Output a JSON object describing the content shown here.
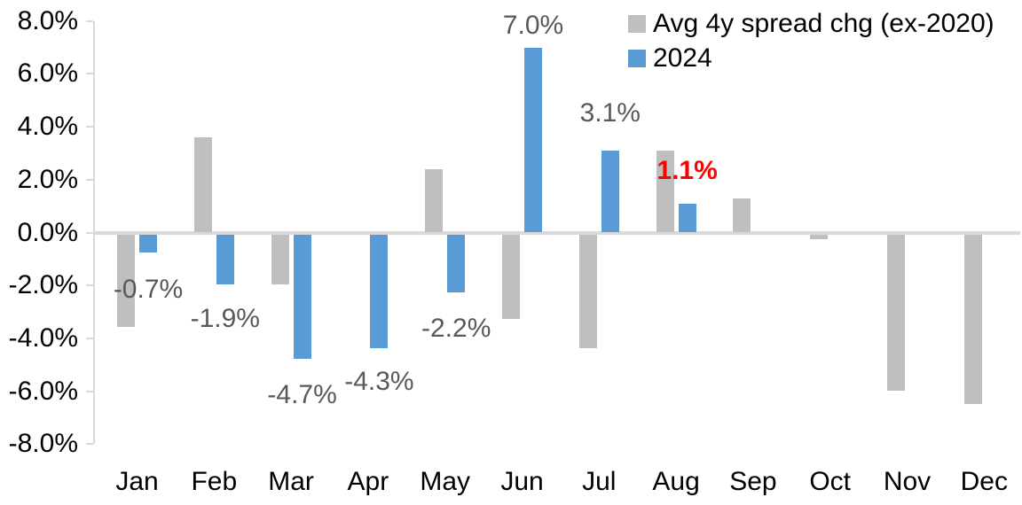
{
  "chart_data": {
    "type": "bar",
    "title": "",
    "xlabel": "",
    "ylabel": "",
    "categories": [
      "Jan",
      "Feb",
      "Mar",
      "Apr",
      "May",
      "Jun",
      "Jul",
      "Aug",
      "Sep",
      "Oct",
      "Nov",
      "Dec"
    ],
    "series": [
      {
        "name": "Avg 4y spread chg (ex-2020)",
        "color": "#BFBFBF",
        "values": [
          -3.5,
          3.6,
          -1.9,
          0.0,
          2.4,
          -3.2,
          -4.3,
          3.1,
          1.3,
          -0.2,
          -5.9,
          -6.4
        ]
      },
      {
        "name": "2024",
        "color": "#5B9BD5",
        "values": [
          -0.7,
          -1.9,
          -4.7,
          -4.3,
          -2.2,
          7.0,
          3.1,
          1.1,
          null,
          null,
          null,
          null
        ]
      }
    ],
    "data_labels": [
      {
        "month_index": 0,
        "series": "2024",
        "text": "-0.7%",
        "color": "#595959",
        "bold": false
      },
      {
        "month_index": 1,
        "series": "2024",
        "text": "-1.9%",
        "color": "#595959",
        "bold": false
      },
      {
        "month_index": 2,
        "series": "2024",
        "text": "-4.7%",
        "color": "#595959",
        "bold": false
      },
      {
        "month_index": 3,
        "series": "2024",
        "text": "-4.3%",
        "color": "#595959",
        "bold": false
      },
      {
        "month_index": 4,
        "series": "2024",
        "text": "-2.2%",
        "color": "#595959",
        "bold": false
      },
      {
        "month_index": 5,
        "series": "2024",
        "text": "7.0%",
        "color": "#595959",
        "bold": false
      },
      {
        "month_index": 6,
        "series": "2024",
        "text": "3.1%",
        "color": "#595959",
        "bold": false
      },
      {
        "month_index": 7,
        "series": "2024",
        "text": "1.1%",
        "color": "#FF0000",
        "bold": true
      }
    ],
    "y_axis": {
      "min": -8,
      "max": 8,
      "step": 2,
      "unit": "%",
      "tick_labels": [
        "8.0%",
        "6.0%",
        "4.0%",
        "2.0%",
        "0.0%",
        "-2.0%",
        "-4.0%",
        "-6.0%",
        "-8.0%"
      ]
    },
    "grid": false,
    "legend_position": "top-right",
    "axis_color": "#D9D9D9",
    "axis_text_color": "#000000"
  }
}
